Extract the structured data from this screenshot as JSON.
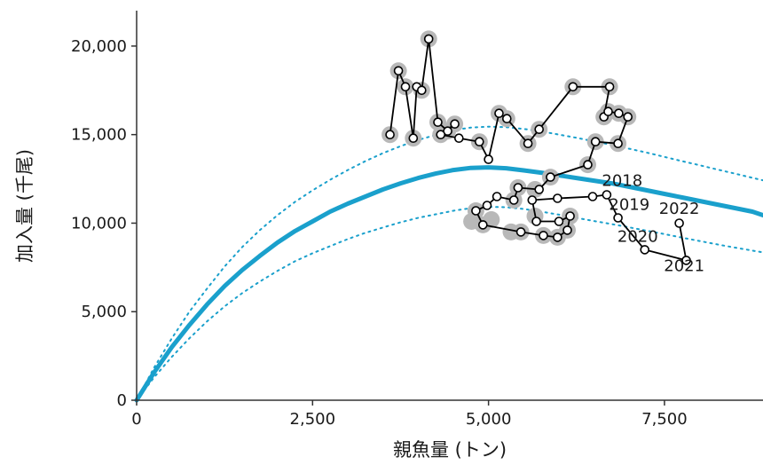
{
  "chart_data": {
    "type": "scatter",
    "xlabel": "親魚量 (トン)",
    "ylabel": "加入量 (千尾)",
    "xlim": [
      0,
      8900
    ],
    "ylim": [
      0,
      22000
    ],
    "x_ticks": [
      {
        "value": 0,
        "label": "0"
      },
      {
        "value": 2500,
        "label": "2,500"
      },
      {
        "value": 5000,
        "label": "5,000"
      },
      {
        "value": 7500,
        "label": "7,500"
      }
    ],
    "y_ticks": [
      {
        "value": 0,
        "label": "0"
      },
      {
        "value": 5000,
        "label": "5,000"
      },
      {
        "value": 10000,
        "label": "10,000"
      },
      {
        "value": 15000,
        "label": "15,000"
      },
      {
        "value": 20000,
        "label": "20,000"
      }
    ],
    "grid": false,
    "colors": {
      "fit_line": "#1aa0cc",
      "ci_line": "#1aa0cc",
      "trajectory": "#000000",
      "marker_fill": "#ffffff",
      "highlight": "#b8b8b8"
    },
    "series": [
      {
        "role": "fitted",
        "style": "solid",
        "points": [
          [
            0,
            0
          ],
          [
            250,
            1580
          ],
          [
            500,
            3000
          ],
          [
            750,
            4250
          ],
          [
            1000,
            5400
          ],
          [
            1250,
            6450
          ],
          [
            1500,
            7350
          ],
          [
            1750,
            8150
          ],
          [
            2000,
            8900
          ],
          [
            2250,
            9550
          ],
          [
            2500,
            10100
          ],
          [
            2750,
            10650
          ],
          [
            3000,
            11100
          ],
          [
            3250,
            11500
          ],
          [
            3500,
            11900
          ],
          [
            3750,
            12250
          ],
          [
            4000,
            12550
          ],
          [
            4250,
            12800
          ],
          [
            4500,
            13000
          ],
          [
            4750,
            13120
          ],
          [
            5000,
            13150
          ],
          [
            5250,
            13100
          ],
          [
            5500,
            12980
          ],
          [
            5750,
            12850
          ],
          [
            6000,
            12700
          ],
          [
            6250,
            12550
          ],
          [
            6500,
            12400
          ],
          [
            6750,
            12250
          ],
          [
            7000,
            12050
          ],
          [
            7250,
            11850
          ],
          [
            7500,
            11650
          ],
          [
            7750,
            11450
          ],
          [
            8000,
            11250
          ],
          [
            8250,
            11050
          ],
          [
            8500,
            10850
          ],
          [
            8750,
            10650
          ],
          [
            8900,
            10450
          ]
        ]
      },
      {
        "role": "upper",
        "style": "dotted",
        "points": [
          [
            0,
            0
          ],
          [
            250,
            1850
          ],
          [
            500,
            3500
          ],
          [
            750,
            5000
          ],
          [
            1000,
            6300
          ],
          [
            1250,
            7550
          ],
          [
            1500,
            8650
          ],
          [
            1750,
            9600
          ],
          [
            2000,
            10450
          ],
          [
            2250,
            11200
          ],
          [
            2500,
            11850
          ],
          [
            2750,
            12450
          ],
          [
            3000,
            13000
          ],
          [
            3250,
            13500
          ],
          [
            3500,
            13950
          ],
          [
            3750,
            14350
          ],
          [
            4000,
            14700
          ],
          [
            4250,
            14980
          ],
          [
            4500,
            15250
          ],
          [
            4750,
            15400
          ],
          [
            5000,
            15450
          ],
          [
            5250,
            15420
          ],
          [
            5500,
            15320
          ],
          [
            5750,
            15180
          ],
          [
            6000,
            15000
          ],
          [
            6250,
            14820
          ],
          [
            6500,
            14620
          ],
          [
            6750,
            14420
          ],
          [
            7000,
            14200
          ],
          [
            7250,
            13980
          ],
          [
            7500,
            13740
          ],
          [
            7750,
            13500
          ],
          [
            8000,
            13270
          ],
          [
            8250,
            13030
          ],
          [
            8500,
            12800
          ],
          [
            8750,
            12560
          ],
          [
            8900,
            12420
          ]
        ]
      },
      {
        "role": "lower",
        "style": "dotted",
        "points": [
          [
            0,
            0
          ],
          [
            250,
            1300
          ],
          [
            500,
            2450
          ],
          [
            750,
            3500
          ],
          [
            1000,
            4450
          ],
          [
            1250,
            5300
          ],
          [
            1500,
            6050
          ],
          [
            1750,
            6700
          ],
          [
            2000,
            7300
          ],
          [
            2250,
            7850
          ],
          [
            2500,
            8300
          ],
          [
            2750,
            8700
          ],
          [
            3000,
            9100
          ],
          [
            3250,
            9450
          ],
          [
            3500,
            9750
          ],
          [
            3750,
            10050
          ],
          [
            4000,
            10300
          ],
          [
            4250,
            10500
          ],
          [
            4500,
            10700
          ],
          [
            4750,
            10850
          ],
          [
            5000,
            10920
          ],
          [
            5250,
            10900
          ],
          [
            5500,
            10800
          ],
          [
            5750,
            10650
          ],
          [
            6000,
            10480
          ],
          [
            6250,
            10300
          ],
          [
            6500,
            10120
          ],
          [
            6750,
            9950
          ],
          [
            7000,
            9760
          ],
          [
            7250,
            9570
          ],
          [
            7500,
            9380
          ],
          [
            7750,
            9180
          ],
          [
            8000,
            8990
          ],
          [
            8250,
            8800
          ],
          [
            8500,
            8620
          ],
          [
            8750,
            8450
          ],
          [
            8900,
            8350
          ]
        ]
      },
      {
        "role": "observed",
        "points": [
          [
            3600,
            15000
          ],
          [
            3720,
            18600
          ],
          [
            3820,
            17700
          ],
          [
            3930,
            14800
          ],
          [
            3980,
            17700
          ],
          [
            4050,
            17500
          ],
          [
            4150,
            20400
          ],
          [
            4280,
            15700
          ],
          [
            4420,
            15200
          ],
          [
            4520,
            15600
          ],
          [
            4320,
            15000
          ],
          [
            4580,
            14800
          ],
          [
            4870,
            14600
          ],
          [
            5000,
            13600
          ],
          [
            5150,
            16200
          ],
          [
            5260,
            15900
          ],
          [
            5560,
            14500
          ],
          [
            5720,
            15300
          ],
          [
            6200,
            17700
          ],
          [
            6720,
            17700
          ],
          [
            6640,
            16000
          ],
          [
            6700,
            16300
          ],
          [
            6850,
            16200
          ],
          [
            6980,
            16000
          ],
          [
            6840,
            14500
          ],
          [
            6520,
            14600
          ],
          [
            6410,
            13300
          ],
          [
            5880,
            12600
          ],
          [
            5720,
            11900
          ],
          [
            5420,
            12000
          ],
          [
            5360,
            11300
          ],
          [
            5120,
            11500
          ],
          [
            4980,
            11000
          ],
          [
            4820,
            10700
          ],
          [
            4920,
            9900
          ],
          [
            5460,
            9500
          ],
          [
            5780,
            9300
          ],
          [
            5980,
            9200
          ],
          [
            6120,
            9600
          ],
          [
            6160,
            10400
          ],
          [
            6000,
            10100
          ],
          [
            5680,
            10100
          ],
          [
            5620,
            11300
          ],
          [
            5980,
            11400
          ],
          [
            6480,
            11500
          ],
          [
            6680,
            11600
          ],
          [
            6840,
            10300
          ],
          [
            7220,
            8500
          ],
          [
            7810,
            7900
          ],
          [
            7710,
            10000
          ]
        ]
      }
    ],
    "highlighted_points": [
      [
        3600,
        15000
      ],
      [
        3720,
        18600
      ],
      [
        3820,
        17700
      ],
      [
        3930,
        14800
      ],
      [
        4050,
        17500
      ],
      [
        4150,
        20400
      ],
      [
        4280,
        15700
      ],
      [
        4420,
        15200
      ],
      [
        4520,
        15600
      ],
      [
        4320,
        15000
      ],
      [
        4870,
        14600
      ],
      [
        5150,
        16200
      ],
      [
        5260,
        15900
      ],
      [
        5560,
        14500
      ],
      [
        5720,
        15300
      ],
      [
        6200,
        17700
      ],
      [
        6720,
        17700
      ],
      [
        6640,
        16000
      ],
      [
        6700,
        16300
      ],
      [
        6850,
        16200
      ],
      [
        6980,
        16000
      ],
      [
        6840,
        14500
      ],
      [
        6520,
        14600
      ],
      [
        6410,
        13300
      ],
      [
        5880,
        12600
      ],
      [
        5660,
        11900
      ],
      [
        5420,
        12000
      ],
      [
        5360,
        11300
      ],
      [
        4820,
        10700
      ],
      [
        4760,
        10100
      ],
      [
        4920,
        9900
      ],
      [
        5040,
        10200
      ],
      [
        5320,
        9500
      ],
      [
        5460,
        9500
      ],
      [
        5780,
        9300
      ],
      [
        5980,
        9200
      ],
      [
        6120,
        9600
      ],
      [
        6160,
        10400
      ],
      [
        5660,
        10400
      ]
    ],
    "labels": [
      {
        "text": "2018",
        "x": 6900,
        "y": 12100
      },
      {
        "text": "2019",
        "x": 7000,
        "y": 10750
      },
      {
        "text": "2020",
        "x": 7120,
        "y": 8950
      },
      {
        "text": "2021",
        "x": 7780,
        "y": 7300
      },
      {
        "text": "2022",
        "x": 7710,
        "y": 10520
      }
    ]
  }
}
